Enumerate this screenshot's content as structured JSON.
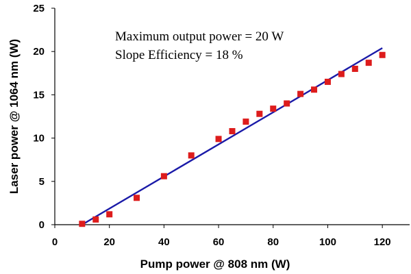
{
  "chart_data": {
    "type": "scatter",
    "title": "",
    "xlabel": "Pump power @ 808 nm (W)",
    "ylabel": "Laser power @ 1064 nm (W)",
    "xlim": [
      0,
      130
    ],
    "ylim": [
      0,
      25
    ],
    "x_ticks": [
      "0",
      "20",
      "40",
      "60",
      "80",
      "100",
      "120"
    ],
    "y_ticks": [
      "0",
      "5",
      "10",
      "15",
      "20",
      "25"
    ],
    "grid": false,
    "annotations": [
      "Maximum output power = 20 W",
      "Slope Efficiency = 18 %"
    ],
    "series": [
      {
        "kind": "markers",
        "color": "#dd1c1c",
        "x": [
          10,
          15,
          20,
          30,
          40,
          50,
          60,
          65,
          70,
          75,
          80,
          85,
          90,
          95,
          100,
          105,
          110,
          115,
          120
        ],
        "y": [
          0.1,
          0.6,
          1.2,
          3.1,
          5.6,
          8.0,
          9.9,
          10.8,
          11.9,
          12.8,
          13.4,
          14.0,
          15.1,
          15.6,
          16.5,
          17.4,
          18.0,
          18.7,
          19.6
        ]
      },
      {
        "kind": "line",
        "color": "#1a1aa8",
        "x": [
          10,
          120
        ],
        "y": [
          0.0,
          20.4
        ]
      }
    ]
  }
}
